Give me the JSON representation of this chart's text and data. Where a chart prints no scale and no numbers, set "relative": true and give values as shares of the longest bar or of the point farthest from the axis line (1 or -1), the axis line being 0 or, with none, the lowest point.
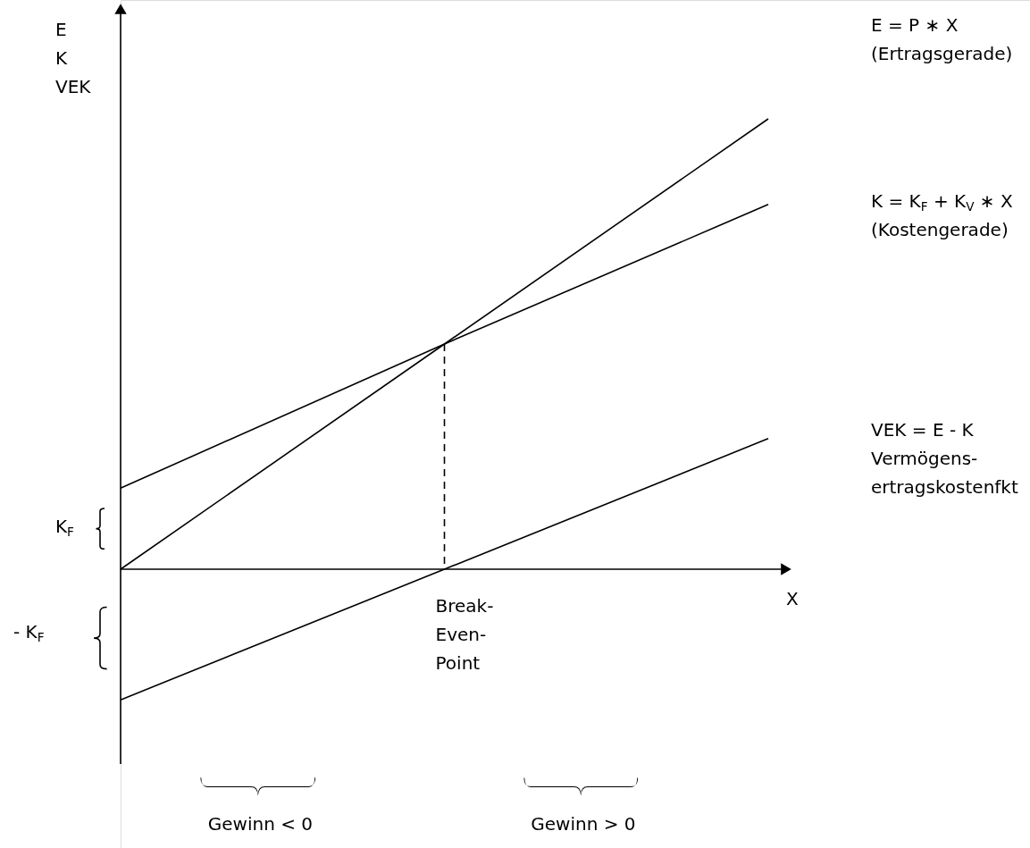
{
  "chart_data": {
    "type": "line",
    "relative": true,
    "ylabel": "E\nK\nVEK",
    "xlabel": "X",
    "categories": [
      null,
      null,
      null
    ],
    "series": [
      {
        "name": "E = P ∗ X\n(Ertragsgerade)",
        "color": "#000000",
        "values": [
          0,
          0.5,
          1
        ]
      },
      {
        "name": "K = K$_{F}$ + K$_{V}$ ∗ X\n(Kostengerade)",
        "color": "#000000",
        "values": [
          0.18,
          0.5,
          0.81
        ]
      },
      {
        "name": "VEK = E - K\nVermögens-\nertragskostenfkt",
        "color": "#000000",
        "values": [
          -0.29,
          0,
          0.29
        ]
      }
    ],
    "annotations": [
      "Break-\nEven-\nPoint",
      "K$_{F}$",
      "- K$_{F}$",
      "Gewinn < 0",
      "Gewinn > 0"
    ]
  }
}
